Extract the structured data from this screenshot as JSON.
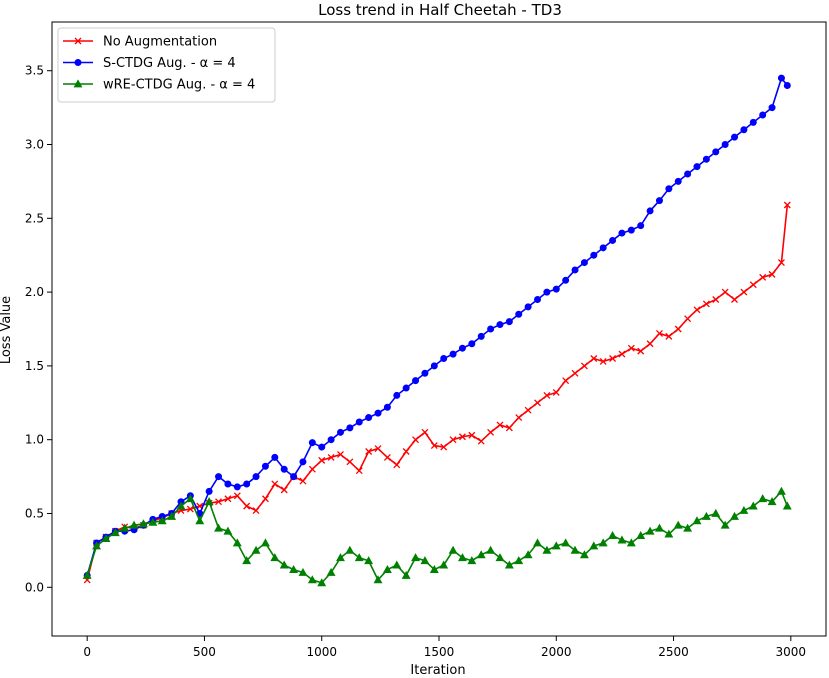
{
  "chart_data": {
    "type": "line",
    "title": "Loss trend in Half Cheetah - TD3",
    "xlabel": "Iteration",
    "ylabel": "Loss Value",
    "xlim": [
      -150,
      3150
    ],
    "ylim": [
      -0.33,
      3.83
    ],
    "xticks": [
      0,
      500,
      1000,
      1500,
      2000,
      2500,
      3000
    ],
    "yticks": [
      0.0,
      0.5,
      1.0,
      1.5,
      2.0,
      2.5,
      3.0,
      3.5
    ],
    "xtick_labels": [
      "0",
      "500",
      "1000",
      "1500",
      "2000",
      "2500",
      "3000"
    ],
    "ytick_labels": [
      "0.0",
      "0.5",
      "1.0",
      "1.5",
      "2.0",
      "2.5",
      "3.0",
      "3.5"
    ],
    "grid": false,
    "legend_position": "top-left",
    "series": [
      {
        "name": "No Augmentation",
        "color": "#ff0000",
        "marker": "x",
        "x": [
          0,
          40,
          80,
          120,
          160,
          200,
          240,
          280,
          320,
          360,
          400,
          440,
          480,
          520,
          560,
          600,
          640,
          680,
          720,
          760,
          800,
          840,
          880,
          920,
          960,
          1000,
          1040,
          1080,
          1120,
          1160,
          1200,
          1240,
          1280,
          1320,
          1360,
          1400,
          1440,
          1480,
          1520,
          1560,
          1600,
          1640,
          1680,
          1720,
          1760,
          1800,
          1840,
          1880,
          1920,
          1960,
          2000,
          2040,
          2080,
          2120,
          2160,
          2200,
          2240,
          2280,
          2320,
          2360,
          2400,
          2440,
          2480,
          2520,
          2560,
          2600,
          2640,
          2680,
          2720,
          2760,
          2800,
          2840,
          2880,
          2920,
          2960,
          2985
        ],
        "y": [
          0.05,
          0.3,
          0.34,
          0.38,
          0.41,
          0.4,
          0.42,
          0.45,
          0.47,
          0.5,
          0.52,
          0.53,
          0.55,
          0.57,
          0.58,
          0.6,
          0.62,
          0.55,
          0.52,
          0.6,
          0.7,
          0.66,
          0.75,
          0.72,
          0.8,
          0.86,
          0.88,
          0.9,
          0.85,
          0.79,
          0.92,
          0.94,
          0.88,
          0.83,
          0.92,
          1.0,
          1.05,
          0.96,
          0.95,
          1.0,
          1.02,
          1.03,
          0.99,
          1.05,
          1.1,
          1.08,
          1.15,
          1.2,
          1.25,
          1.3,
          1.32,
          1.4,
          1.45,
          1.5,
          1.55,
          1.53,
          1.55,
          1.58,
          1.62,
          1.6,
          1.65,
          1.72,
          1.7,
          1.75,
          1.82,
          1.88,
          1.92,
          1.95,
          2.0,
          1.95,
          2.0,
          2.05,
          2.1,
          2.12,
          2.2,
          2.59
        ]
      },
      {
        "name": "S-CTDG Aug. - α = 4",
        "color": "#0000ff",
        "marker": "o",
        "x": [
          0,
          40,
          80,
          120,
          160,
          200,
          240,
          280,
          320,
          360,
          400,
          440,
          480,
          520,
          560,
          600,
          640,
          680,
          720,
          760,
          800,
          840,
          880,
          920,
          960,
          1000,
          1040,
          1080,
          1120,
          1160,
          1200,
          1240,
          1280,
          1320,
          1360,
          1400,
          1440,
          1480,
          1520,
          1560,
          1600,
          1640,
          1680,
          1720,
          1760,
          1800,
          1840,
          1880,
          1920,
          1960,
          2000,
          2040,
          2080,
          2120,
          2160,
          2200,
          2240,
          2280,
          2320,
          2360,
          2400,
          2440,
          2480,
          2520,
          2560,
          2600,
          2640,
          2680,
          2720,
          2760,
          2800,
          2840,
          2880,
          2920,
          2960,
          2985
        ],
        "y": [
          0.08,
          0.3,
          0.34,
          0.38,
          0.38,
          0.39,
          0.42,
          0.46,
          0.48,
          0.5,
          0.58,
          0.62,
          0.5,
          0.65,
          0.75,
          0.7,
          0.68,
          0.7,
          0.75,
          0.82,
          0.88,
          0.8,
          0.75,
          0.85,
          0.98,
          0.95,
          1.0,
          1.05,
          1.08,
          1.12,
          1.15,
          1.18,
          1.22,
          1.3,
          1.35,
          1.4,
          1.45,
          1.5,
          1.55,
          1.58,
          1.62,
          1.65,
          1.7,
          1.75,
          1.78,
          1.8,
          1.85,
          1.9,
          1.95,
          2.0,
          2.02,
          2.08,
          2.15,
          2.2,
          2.25,
          2.3,
          2.35,
          2.4,
          2.42,
          2.45,
          2.55,
          2.62,
          2.7,
          2.75,
          2.8,
          2.85,
          2.9,
          2.95,
          3.0,
          3.05,
          3.1,
          3.15,
          3.2,
          3.25,
          3.45,
          3.4
        ]
      },
      {
        "name": "wRE-CTDG Aug. - α = 4",
        "color": "#008000",
        "marker": "^",
        "x": [
          0,
          40,
          80,
          120,
          160,
          200,
          240,
          280,
          320,
          360,
          400,
          440,
          480,
          520,
          560,
          600,
          640,
          680,
          720,
          760,
          800,
          840,
          880,
          920,
          960,
          1000,
          1040,
          1080,
          1120,
          1160,
          1200,
          1240,
          1280,
          1320,
          1360,
          1400,
          1440,
          1480,
          1520,
          1560,
          1600,
          1640,
          1680,
          1720,
          1760,
          1800,
          1840,
          1880,
          1920,
          1960,
          2000,
          2040,
          2080,
          2120,
          2160,
          2200,
          2240,
          2280,
          2320,
          2360,
          2400,
          2440,
          2480,
          2520,
          2560,
          2600,
          2640,
          2680,
          2720,
          2760,
          2800,
          2840,
          2880,
          2920,
          2960,
          2985
        ],
        "y": [
          0.08,
          0.28,
          0.33,
          0.37,
          0.4,
          0.42,
          0.43,
          0.44,
          0.45,
          0.48,
          0.55,
          0.6,
          0.45,
          0.58,
          0.4,
          0.38,
          0.3,
          0.18,
          0.25,
          0.3,
          0.2,
          0.15,
          0.12,
          0.1,
          0.05,
          0.03,
          0.1,
          0.2,
          0.25,
          0.2,
          0.18,
          0.05,
          0.12,
          0.15,
          0.08,
          0.2,
          0.18,
          0.12,
          0.15,
          0.25,
          0.2,
          0.18,
          0.22,
          0.25,
          0.2,
          0.15,
          0.18,
          0.22,
          0.3,
          0.25,
          0.28,
          0.3,
          0.25,
          0.22,
          0.28,
          0.3,
          0.35,
          0.32,
          0.3,
          0.35,
          0.38,
          0.4,
          0.36,
          0.42,
          0.4,
          0.45,
          0.48,
          0.5,
          0.42,
          0.48,
          0.52,
          0.55,
          0.6,
          0.58,
          0.65,
          0.55
        ]
      }
    ]
  }
}
